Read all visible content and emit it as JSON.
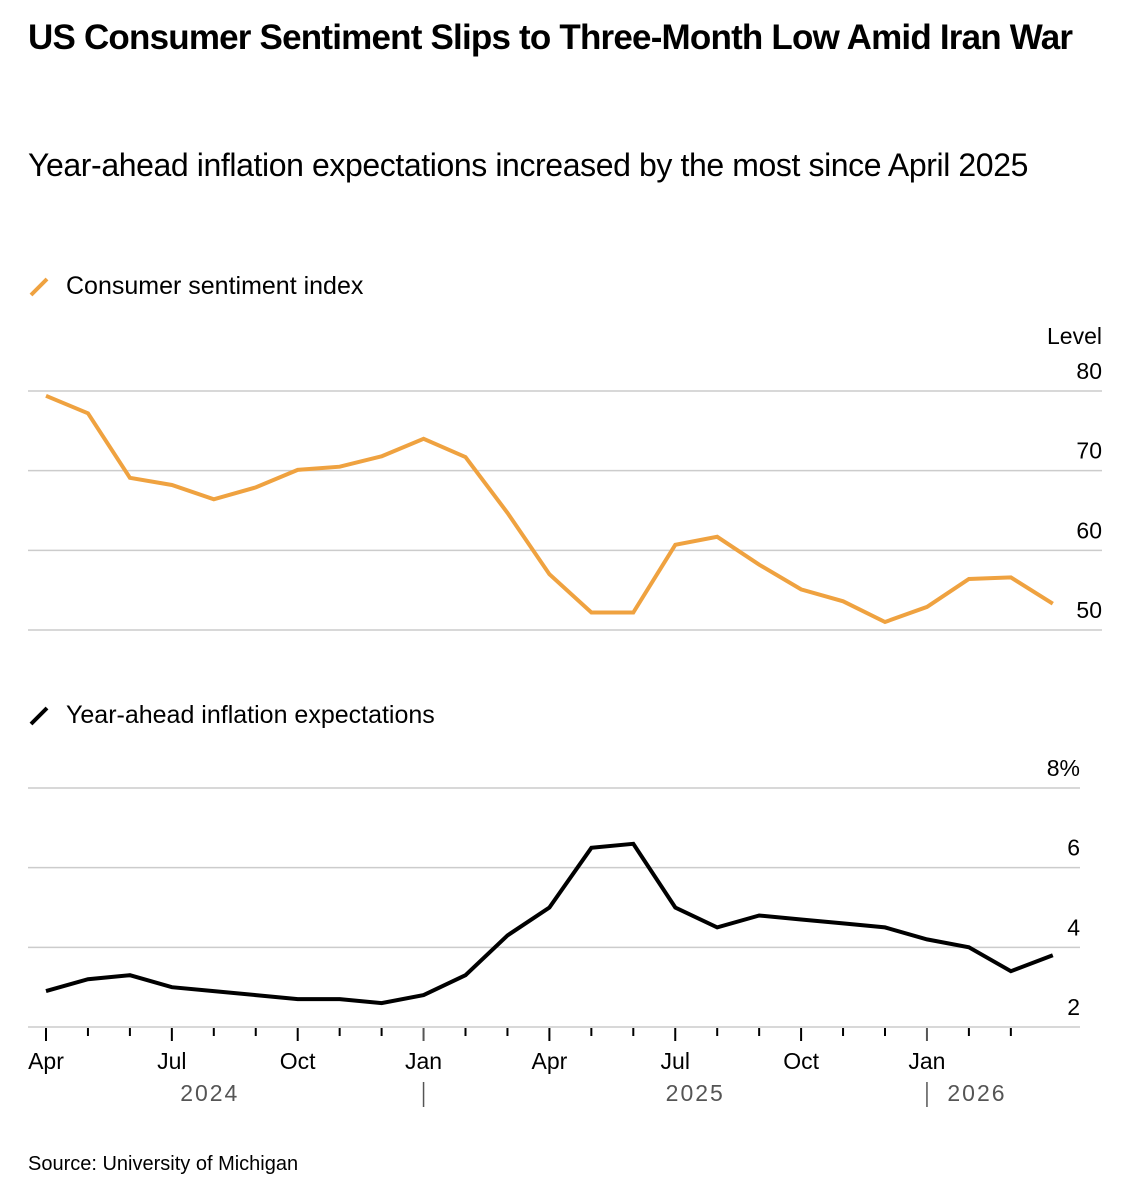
{
  "header": {
    "title": "US Consumer Sentiment Slips to Three-Month Low Amid Iran War",
    "subtitle": "Year-ahead inflation expectations increased by the most since April 2025"
  },
  "footer": {
    "source": "Source: University of Michigan"
  },
  "colors": {
    "sentiment": "#EFA240",
    "inflation": "#000000",
    "grid": "#CCCCCC",
    "year_label": "#555555"
  },
  "chart_data": [
    {
      "type": "line",
      "title": "Consumer sentiment index",
      "legend": "Consumer sentiment index",
      "legend_placement": "top-left",
      "ylabel": "Level",
      "ylim": [
        50,
        80
      ],
      "yticks": [
        80,
        70,
        60,
        50
      ],
      "ytick_labels": [
        "80",
        "70",
        "60",
        "50"
      ],
      "grid": true,
      "x": [
        "2024-03",
        "2024-04",
        "2024-05",
        "2024-06",
        "2024-07",
        "2024-08",
        "2024-09",
        "2024-10",
        "2024-11",
        "2024-12",
        "2025-01",
        "2025-02",
        "2025-03",
        "2025-04",
        "2025-05",
        "2025-06",
        "2025-07",
        "2025-08",
        "2025-09",
        "2025-10",
        "2025-11",
        "2025-12",
        "2026-01",
        "2026-02",
        "2026-03"
      ],
      "series": [
        {
          "name": "Consumer sentiment index",
          "values": [
            79.4,
            77.2,
            69.1,
            68.2,
            66.4,
            67.9,
            70.1,
            70.5,
            71.8,
            74.0,
            71.7,
            64.7,
            57.0,
            52.2,
            52.2,
            60.7,
            61.7,
            58.2,
            55.1,
            53.6,
            51.0,
            52.9,
            56.4,
            56.6,
            53.3
          ]
        }
      ]
    },
    {
      "type": "line",
      "title": "Year-ahead inflation expectations",
      "legend": "Year-ahead inflation expectations",
      "legend_placement": "top-left",
      "ylabel": "",
      "ylim": [
        2,
        8
      ],
      "yticks": [
        8,
        6,
        4,
        2
      ],
      "ytick_labels": [
        "8%",
        "6",
        "4",
        "2"
      ],
      "grid": true,
      "x": [
        "2024-03",
        "2024-04",
        "2024-05",
        "2024-06",
        "2024-07",
        "2024-08",
        "2024-09",
        "2024-10",
        "2024-11",
        "2024-12",
        "2025-01",
        "2025-02",
        "2025-03",
        "2025-04",
        "2025-05",
        "2025-06",
        "2025-07",
        "2025-08",
        "2025-09",
        "2025-10",
        "2025-11",
        "2025-12",
        "2026-01",
        "2026-02",
        "2026-03"
      ],
      "series": [
        {
          "name": "Year-ahead inflation expectations",
          "values": [
            2.9,
            3.2,
            3.3,
            3.0,
            2.9,
            2.8,
            2.7,
            2.7,
            2.6,
            2.8,
            3.3,
            4.3,
            5.0,
            6.5,
            6.6,
            5.0,
            4.5,
            4.8,
            4.7,
            4.6,
            4.5,
            4.2,
            4.0,
            3.4,
            3.8
          ]
        }
      ],
      "xaxis": {
        "tick_months": [
          "Apr",
          "May",
          "Jun",
          "Jul",
          "Aug",
          "Sep",
          "Oct",
          "Nov",
          "Dec",
          "Jan",
          "Feb",
          "Mar",
          "Apr",
          "May",
          "Jun",
          "Jul",
          "Aug",
          "Sep",
          "Oct",
          "Nov",
          "Dec",
          "Jan",
          "Feb",
          "Mar"
        ],
        "labeled_ticks": [
          {
            "label": "Apr",
            "index": 0
          },
          {
            "label": "Jul",
            "index": 3
          },
          {
            "label": "Oct",
            "index": 6
          },
          {
            "label": "Jan",
            "index": 9
          },
          {
            "label": "Apr",
            "index": 12
          },
          {
            "label": "Jul",
            "index": 15
          },
          {
            "label": "Oct",
            "index": 18
          },
          {
            "label": "Jan",
            "index": 21
          }
        ],
        "years": [
          {
            "label": "2024",
            "separator_after": true
          },
          {
            "label": "2025",
            "separator_after": true
          },
          {
            "label": "2026",
            "separator_after": false
          }
        ]
      }
    }
  ]
}
